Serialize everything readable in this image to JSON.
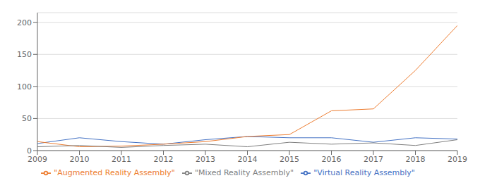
{
  "chart_data": {
    "type": "line",
    "x": [
      2009,
      2010,
      2011,
      2012,
      2013,
      2014,
      2015,
      2016,
      2017,
      2018,
      2019
    ],
    "xlim": [
      2009,
      2019
    ],
    "xticks": [
      2009,
      2010,
      2011,
      2012,
      2013,
      2014,
      2015,
      2016,
      2017,
      2018,
      2019
    ],
    "ylim": [
      0,
      215
    ],
    "yticks": [
      0,
      50,
      100,
      150,
      200
    ],
    "grid": true,
    "legend": "bottom",
    "series": [
      {
        "name": "\"Virtual Reality Assembly\"",
        "color": "#4472c4",
        "values": [
          11,
          20,
          14,
          10,
          17,
          22,
          20,
          20,
          13,
          20,
          18
        ]
      },
      {
        "name": "\"Augmented Reality Assembly\"",
        "color": "#ed7d31",
        "values": [
          14,
          6,
          7,
          10,
          14,
          22,
          25,
          62,
          65,
          125,
          195
        ]
      },
      {
        "name": "\"Mixed Reality Assembly\"",
        "color": "#7f7f7f",
        "values": [
          6,
          8,
          5,
          8,
          10,
          6,
          13,
          10,
          12,
          8,
          17
        ]
      }
    ]
  }
}
